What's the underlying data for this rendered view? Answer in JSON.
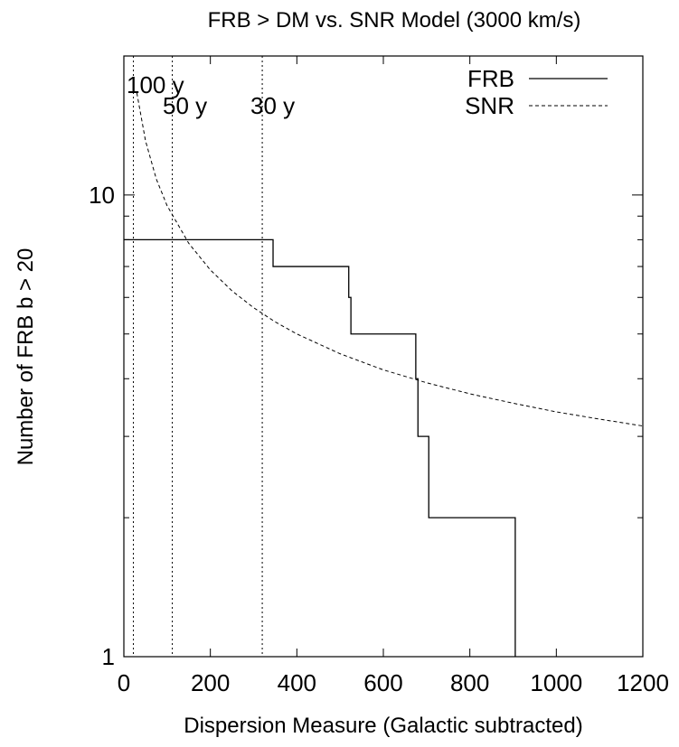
{
  "chart_data": {
    "type": "line",
    "title": "FRB > DM vs. SNR Model (3000 km/s)",
    "xlabel": "Dispersion Measure (Galactic subtracted)",
    "ylabel": "Number of FRB b > 20",
    "xlim": [
      0,
      1200
    ],
    "ylim": [
      1,
      20
    ],
    "yscale": "log",
    "x_ticks": [
      0,
      200,
      400,
      600,
      800,
      1000,
      1200
    ],
    "x_tick_labels": [
      "0",
      "200",
      "400",
      "600",
      "800",
      "1000",
      "1200"
    ],
    "y_ticks": [
      1,
      10
    ],
    "y_tick_labels": [
      "1",
      "10"
    ],
    "grid": false,
    "legend_position": "top-right",
    "series": [
      {
        "name": "FRB",
        "style": "solid-step",
        "x": [
          0,
          345,
          345,
          520,
          520,
          525,
          525,
          675,
          675,
          680,
          680,
          705,
          705,
          905,
          905
        ],
        "y": [
          8,
          8,
          7,
          7,
          6,
          6,
          5,
          5,
          4,
          4,
          3,
          3,
          2,
          2,
          1
        ]
      },
      {
        "name": "SNR",
        "style": "dashed",
        "x": [
          30,
          50,
          75,
          100,
          150,
          200,
          250,
          300,
          350,
          400,
          500,
          600,
          700,
          800,
          900,
          1000,
          1100,
          1200
        ],
        "y": [
          16.64,
          13.11,
          10.83,
          9.48,
          7.86,
          6.88,
          6.2,
          5.7,
          5.31,
          5.0,
          4.53,
          4.18,
          3.92,
          3.71,
          3.54,
          3.39,
          3.27,
          3.16
        ]
      }
    ],
    "vlines": [
      {
        "x": 22,
        "label": "100 y"
      },
      {
        "x": 112,
        "label": "50 y"
      },
      {
        "x": 320,
        "label": "30 y"
      }
    ]
  },
  "colors": {
    "line": "#000000",
    "background": "#ffffff"
  }
}
